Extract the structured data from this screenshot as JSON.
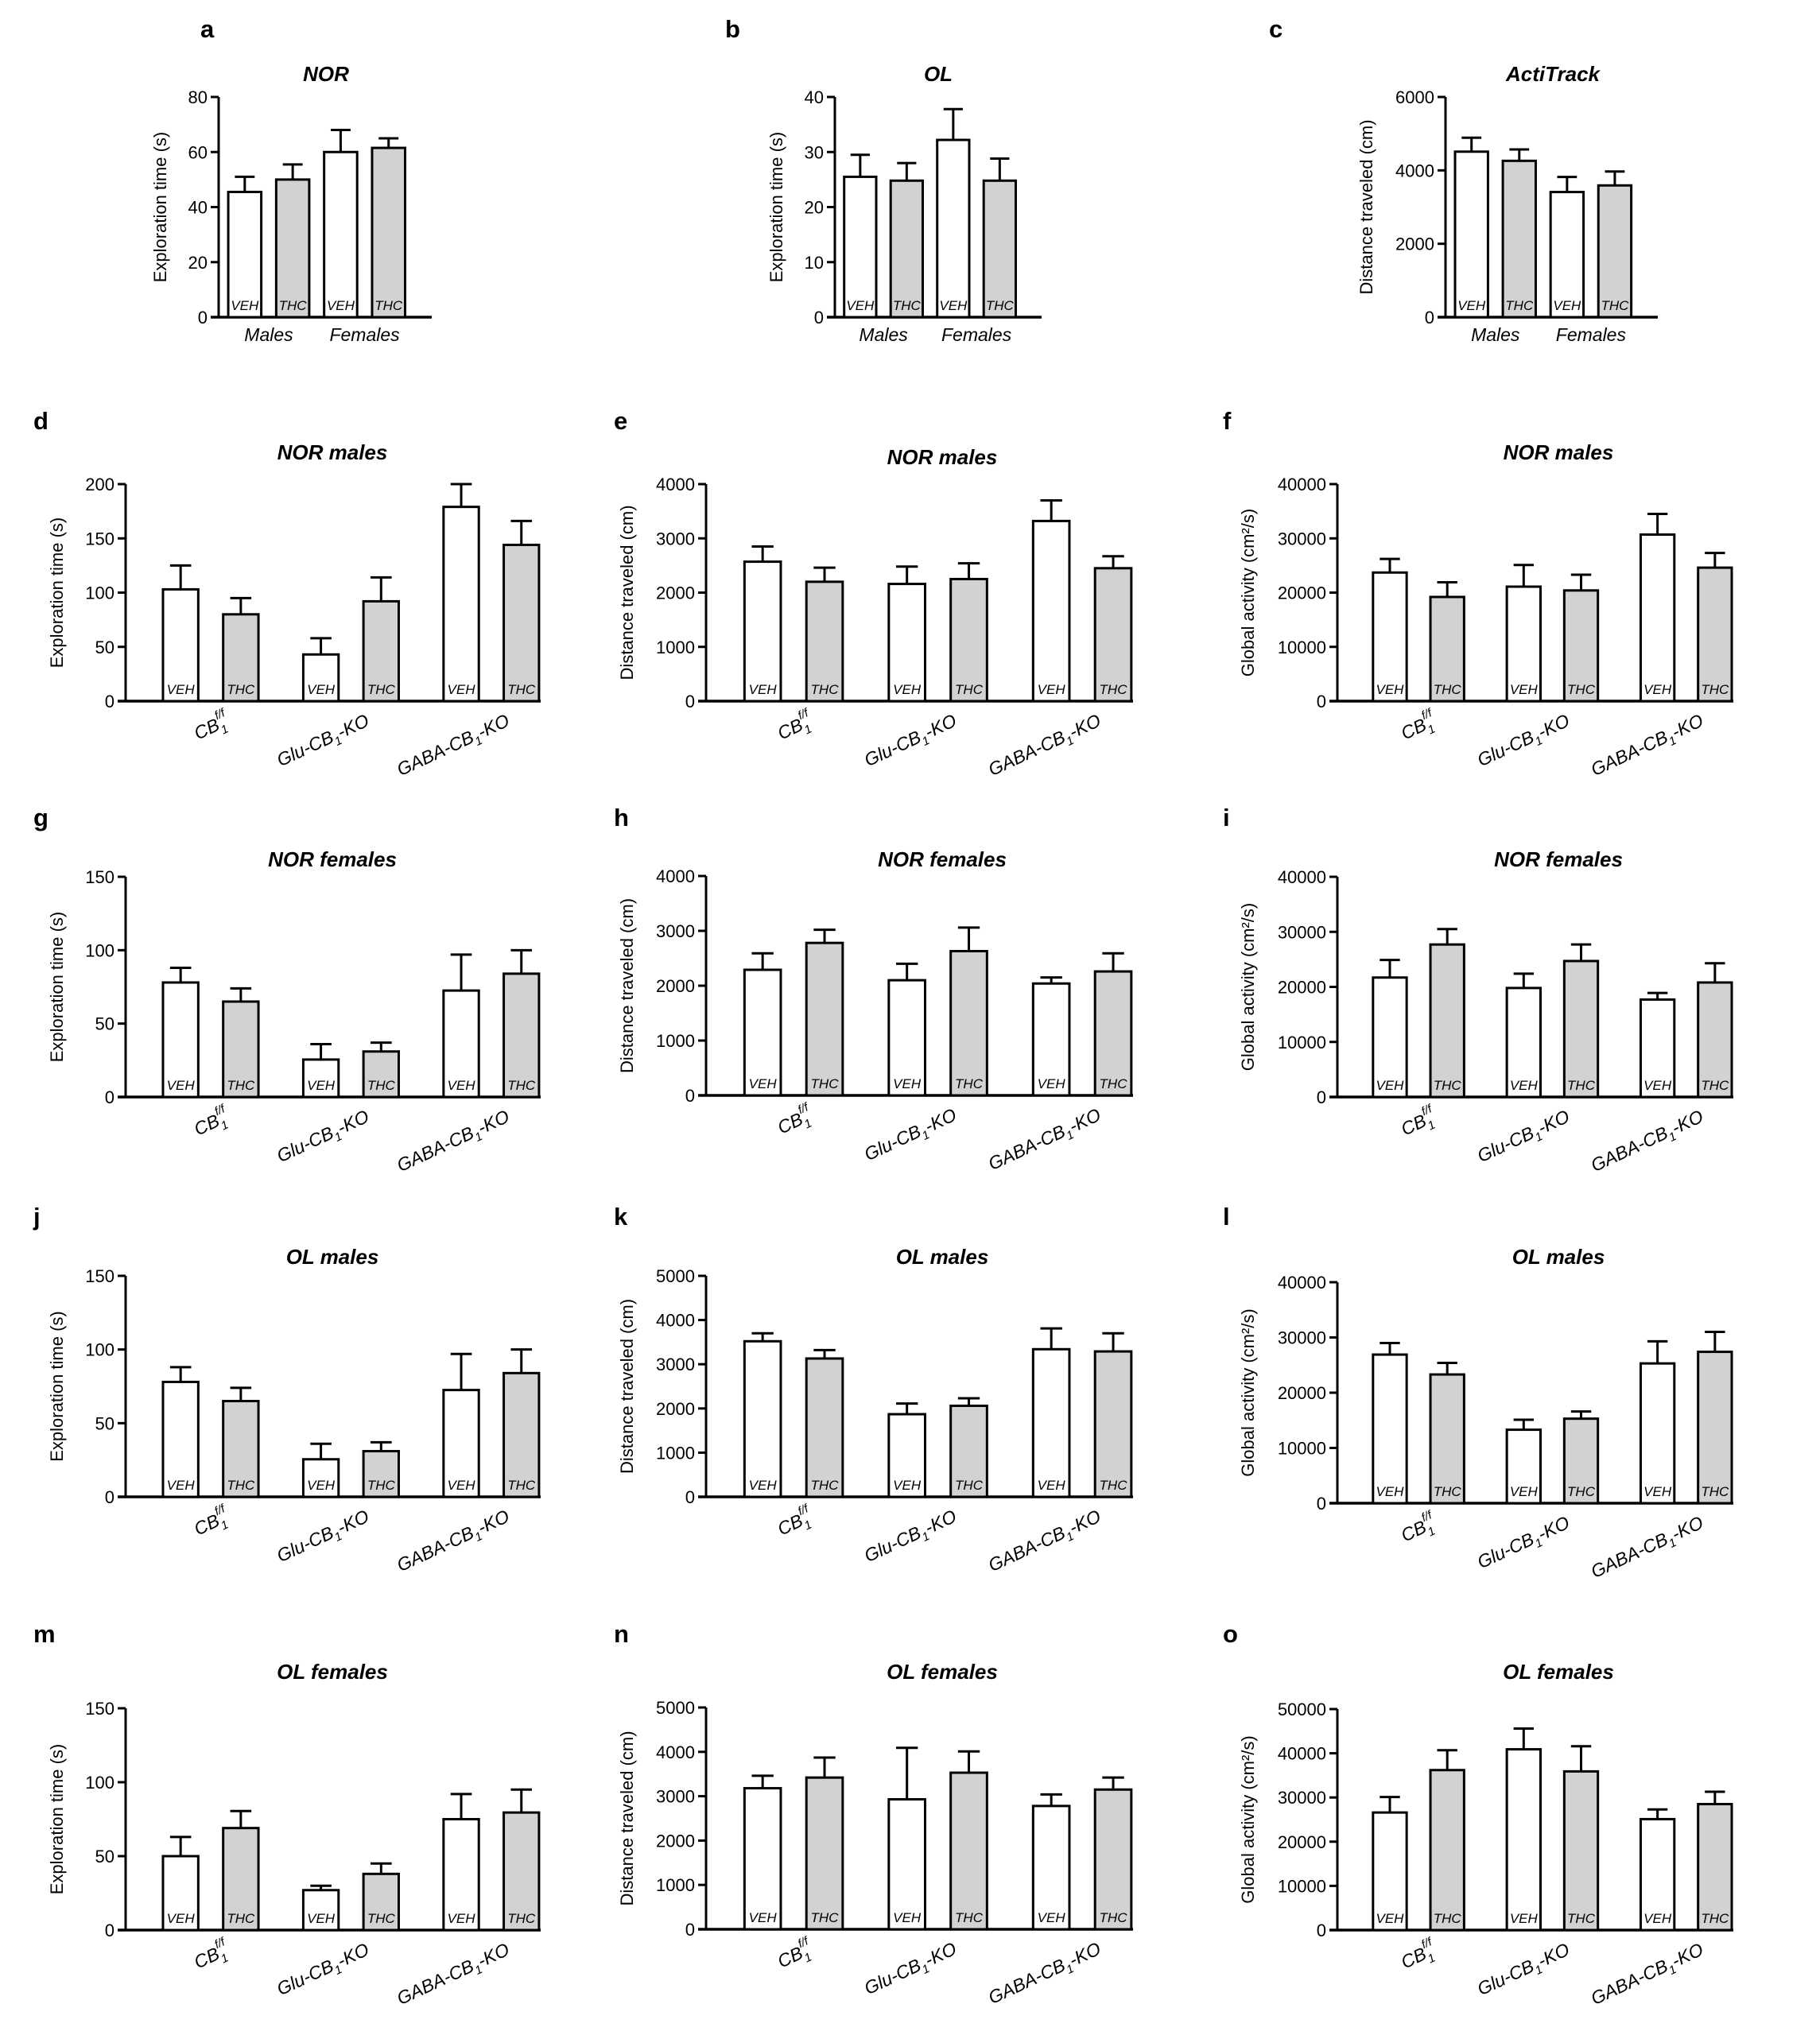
{
  "figure": {
    "fill_colors": {
      "VEH": "#ffffff",
      "THC": "#d3d2d2"
    },
    "stroke_color": "#000000"
  },
  "chart_data": [
    {
      "panel": "a",
      "type": "bar",
      "title": "NOR",
      "ylabel": "Exploration time (s)",
      "ylim": [
        0,
        80
      ],
      "yticks": [
        0,
        20,
        40,
        60,
        80
      ],
      "grid": false,
      "legend": "none",
      "groups": [
        "Males",
        "Females"
      ],
      "bar_labels": [
        "VEH",
        "THC"
      ],
      "series": [
        {
          "name": "VEH",
          "values": [
            45.5,
            60.0
          ],
          "error_upper": [
            51.0,
            68.0
          ]
        },
        {
          "name": "THC",
          "values": [
            50.0,
            61.5
          ],
          "error_upper": [
            55.5,
            65.0
          ]
        }
      ]
    },
    {
      "panel": "b",
      "type": "bar",
      "title": "OL",
      "ylabel": "Exploration time (s)",
      "ylim": [
        0,
        40
      ],
      "yticks": [
        0,
        10,
        20,
        30,
        40
      ],
      "grid": false,
      "legend": "none",
      "groups": [
        "Males",
        "Females"
      ],
      "bar_labels": [
        "VEH",
        "THC"
      ],
      "series": [
        {
          "name": "VEH",
          "values": [
            25.5,
            32.2
          ],
          "error_upper": [
            29.5,
            37.8
          ]
        },
        {
          "name": "THC",
          "values": [
            24.8,
            24.8
          ],
          "error_upper": [
            28.0,
            28.8
          ]
        }
      ]
    },
    {
      "panel": "c",
      "type": "bar",
      "title": "ActiTrack",
      "ylabel": "Distance traveled (cm)",
      "ylim": [
        0,
        6000
      ],
      "yticks": [
        0,
        2000,
        4000,
        6000
      ],
      "grid": false,
      "legend": "none",
      "groups": [
        "Males",
        "Females"
      ],
      "bar_labels": [
        "VEH",
        "THC"
      ],
      "series": [
        {
          "name": "VEH",
          "values": [
            4510,
            3410
          ],
          "error_upper": [
            4890,
            3820
          ]
        },
        {
          "name": "THC",
          "values": [
            4260,
            3590
          ],
          "error_upper": [
            4570,
            3970
          ]
        }
      ]
    },
    {
      "panel": "d",
      "type": "bar",
      "title": "NOR males",
      "ylabel": "Exploration time (s)",
      "ylim": [
        0,
        200
      ],
      "yticks": [
        0,
        50,
        100,
        150,
        200
      ],
      "grid": false,
      "legend": "none",
      "groups": [
        "CB1 f/f",
        "Glu-CB1-KO",
        "GABA-CB1-KO"
      ],
      "bar_labels": [
        "VEH",
        "THC"
      ],
      "series": [
        {
          "name": "VEH",
          "values": [
            103,
            43,
            179
          ],
          "error_upper": [
            125,
            58,
            200
          ]
        },
        {
          "name": "THC",
          "values": [
            80,
            92,
            144
          ],
          "error_upper": [
            95,
            114,
            166
          ]
        }
      ]
    },
    {
      "panel": "e",
      "type": "bar",
      "title": "NOR males",
      "ylabel": "Distance traveled (cm)",
      "ylim": [
        0,
        4000
      ],
      "yticks": [
        0,
        1000,
        2000,
        3000,
        4000
      ],
      "grid": false,
      "legend": "none",
      "groups": [
        "CB1 f/f",
        "Glu-CB1-KO",
        "GABA-CB1-KO"
      ],
      "bar_labels": [
        "VEH",
        "THC"
      ],
      "series": [
        {
          "name": "VEH",
          "values": [
            2570,
            2160,
            3320
          ],
          "error_upper": [
            2850,
            2480,
            3700
          ]
        },
        {
          "name": "THC",
          "values": [
            2200,
            2250,
            2450
          ],
          "error_upper": [
            2460,
            2540,
            2670
          ]
        }
      ]
    },
    {
      "panel": "f",
      "type": "bar",
      "title": "NOR males",
      "ylabel": "Global activity (cm²/s)",
      "ylim": [
        0,
        40000
      ],
      "yticks": [
        0,
        10000,
        20000,
        30000,
        40000
      ],
      "grid": false,
      "legend": "none",
      "groups": [
        "CB1 f/f",
        "Glu-CB1-KO",
        "GABA-CB1-KO"
      ],
      "bar_labels": [
        "VEH",
        "THC"
      ],
      "series": [
        {
          "name": "VEH",
          "values": [
            23700,
            21100,
            30700
          ],
          "error_upper": [
            26200,
            25100,
            34500
          ]
        },
        {
          "name": "THC",
          "values": [
            19200,
            20400,
            24600
          ],
          "error_upper": [
            21900,
            23300,
            27300
          ]
        }
      ]
    },
    {
      "panel": "g",
      "type": "bar",
      "title": "NOR females",
      "ylabel": "Exploration time (s)",
      "ylim": [
        0,
        150
      ],
      "yticks": [
        0,
        50,
        100,
        150
      ],
      "grid": false,
      "legend": "none",
      "groups": [
        "CB1 f/f",
        "Glu-CB1-KO",
        "GABA-CB1-KO"
      ],
      "bar_labels": [
        "VEH",
        "THC"
      ],
      "series": [
        {
          "name": "VEH",
          "values": [
            78,
            25.5,
            72.5
          ],
          "error_upper": [
            88,
            36,
            97
          ]
        },
        {
          "name": "THC",
          "values": [
            65,
            31,
            84
          ],
          "error_upper": [
            74,
            37,
            100
          ]
        }
      ]
    },
    {
      "panel": "h",
      "type": "bar",
      "title": "NOR females",
      "ylabel": "Distance traveled (cm)",
      "ylim": [
        0,
        4000
      ],
      "yticks": [
        0,
        1000,
        2000,
        3000,
        4000
      ],
      "grid": false,
      "legend": "none",
      "groups": [
        "CB1 f/f",
        "Glu-CB1-KO",
        "GABA-CB1-KO"
      ],
      "bar_labels": [
        "VEH",
        "THC"
      ],
      "series": [
        {
          "name": "VEH",
          "values": [
            2290,
            2100,
            2040
          ],
          "error_upper": [
            2590,
            2400,
            2150
          ]
        },
        {
          "name": "THC",
          "values": [
            2780,
            2630,
            2260
          ],
          "error_upper": [
            3020,
            3060,
            2590
          ]
        }
      ]
    },
    {
      "panel": "i",
      "type": "bar",
      "title": "NOR females",
      "ylabel": "Global activity (cm²/s)",
      "ylim": [
        0,
        40000
      ],
      "yticks": [
        0,
        10000,
        20000,
        30000,
        40000
      ],
      "grid": false,
      "legend": "none",
      "groups": [
        "CB1 f/f",
        "Glu-CB1-KO",
        "GABA-CB1-KO"
      ],
      "bar_labels": [
        "VEH",
        "THC"
      ],
      "series": [
        {
          "name": "VEH",
          "values": [
            21700,
            19800,
            17700
          ],
          "error_upper": [
            24900,
            22400,
            18900
          ]
        },
        {
          "name": "THC",
          "values": [
            27700,
            24700,
            20800
          ],
          "error_upper": [
            30500,
            27700,
            24300
          ]
        }
      ]
    },
    {
      "panel": "j",
      "type": "bar",
      "title": "OL males",
      "ylabel": "Exploration time (s)",
      "ylim": [
        0,
        150
      ],
      "yticks": [
        0,
        50,
        100,
        150
      ],
      "grid": false,
      "legend": "none",
      "groups": [
        "CB1 f/f",
        "Glu-CB1-KO",
        "GABA-CB1-KO"
      ],
      "bar_labels": [
        "VEH",
        "THC"
      ],
      "series": [
        {
          "name": "VEH",
          "values": [
            78,
            25.5,
            72.5
          ],
          "error_upper": [
            88,
            36,
            97
          ]
        },
        {
          "name": "THC",
          "values": [
            65,
            31,
            84
          ],
          "error_upper": [
            74,
            37,
            100
          ]
        }
      ]
    },
    {
      "panel": "k",
      "type": "bar",
      "title": "OL males",
      "ylabel": "Distance traveled (cm)",
      "ylim": [
        0,
        5000
      ],
      "yticks": [
        0,
        1000,
        2000,
        3000,
        4000,
        5000
      ],
      "grid": false,
      "legend": "none",
      "groups": [
        "CB1 f/f",
        "Glu-CB1-KO",
        "GABA-CB1-KO"
      ],
      "bar_labels": [
        "VEH",
        "THC"
      ],
      "series": [
        {
          "name": "VEH",
          "values": [
            3520,
            1870,
            3340
          ],
          "error_upper": [
            3700,
            2110,
            3810
          ]
        },
        {
          "name": "THC",
          "values": [
            3130,
            2060,
            3290
          ],
          "error_upper": [
            3320,
            2230,
            3700
          ]
        }
      ]
    },
    {
      "panel": "l",
      "type": "bar",
      "title": "OL males",
      "ylabel": "Global activity (cm²/s)",
      "ylim": [
        0,
        40000
      ],
      "yticks": [
        0,
        10000,
        20000,
        30000,
        40000
      ],
      "grid": false,
      "legend": "none",
      "groups": [
        "CB1 f/f",
        "Glu-CB1-KO",
        "GABA-CB1-KO"
      ],
      "bar_labels": [
        "VEH",
        "THC"
      ],
      "series": [
        {
          "name": "VEH",
          "values": [
            26900,
            13300,
            25300
          ],
          "error_upper": [
            29000,
            15100,
            29300
          ]
        },
        {
          "name": "THC",
          "values": [
            23300,
            15300,
            27400
          ],
          "error_upper": [
            25400,
            16600,
            31000
          ]
        }
      ]
    },
    {
      "panel": "m",
      "type": "bar",
      "title": "OL females",
      "ylabel": "Exploration time (s)",
      "ylim": [
        0,
        150
      ],
      "yticks": [
        0,
        50,
        100,
        150
      ],
      "grid": false,
      "legend": "none",
      "groups": [
        "CB1 f/f",
        "Glu-CB1-KO",
        "GABA-CB1-KO"
      ],
      "bar_labels": [
        "VEH",
        "THC"
      ],
      "series": [
        {
          "name": "VEH",
          "values": [
            50,
            27,
            75
          ],
          "error_upper": [
            63,
            30,
            92
          ]
        },
        {
          "name": "THC",
          "values": [
            69,
            38,
            79.5
          ],
          "error_upper": [
            80.5,
            45,
            95
          ]
        }
      ]
    },
    {
      "panel": "n",
      "type": "bar",
      "title": "OL females",
      "ylabel": "Distance traveled (cm)",
      "ylim": [
        0,
        5000
      ],
      "yticks": [
        0,
        1000,
        2000,
        3000,
        4000,
        5000
      ],
      "grid": false,
      "legend": "none",
      "groups": [
        "CB1 f/f",
        "Glu-CB1-KO",
        "GABA-CB1-KO"
      ],
      "bar_labels": [
        "VEH",
        "THC"
      ],
      "series": [
        {
          "name": "VEH",
          "values": [
            3180,
            2930,
            2780
          ],
          "error_upper": [
            3460,
            4090,
            3040
          ]
        },
        {
          "name": "THC",
          "values": [
            3420,
            3530,
            3150
          ],
          "error_upper": [
            3870,
            4010,
            3420
          ]
        }
      ]
    },
    {
      "panel": "o",
      "type": "bar",
      "title": "OL females",
      "ylabel": "Global activity (cm²/s)",
      "ylim": [
        0,
        50000
      ],
      "yticks": [
        0,
        10000,
        20000,
        30000,
        40000,
        50000
      ],
      "grid": false,
      "legend": "none",
      "groups": [
        "CB1 f/f",
        "Glu-CB1-KO",
        "GABA-CB1-KO"
      ],
      "bar_labels": [
        "VEH",
        "THC"
      ],
      "series": [
        {
          "name": "VEH",
          "values": [
            26600,
            40900,
            25100
          ],
          "error_upper": [
            30100,
            45600,
            27300
          ]
        },
        {
          "name": "THC",
          "values": [
            36200,
            35900,
            28500
          ],
          "error_upper": [
            40700,
            41600,
            31300
          ]
        }
      ]
    }
  ]
}
